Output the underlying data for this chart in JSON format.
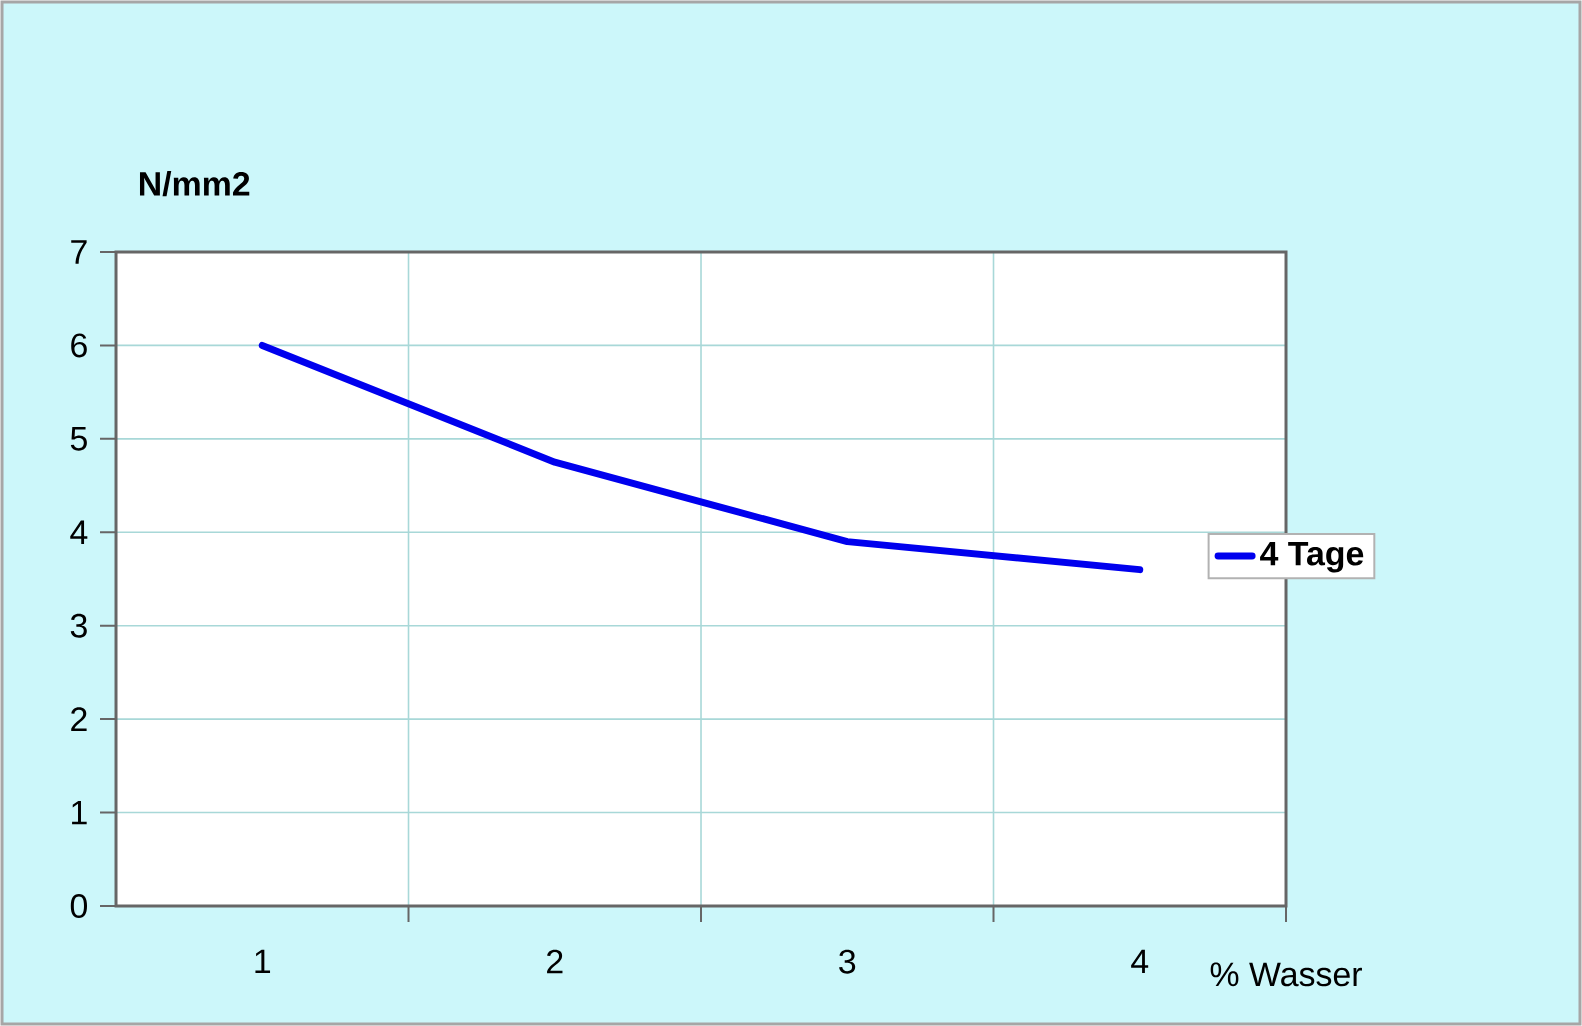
{
  "chart_data": {
    "type": "line",
    "ylabel": "N/mm2",
    "xlabel": "% Wasser",
    "categories": [
      "1",
      "2",
      "3",
      "4"
    ],
    "series": [
      {
        "name": "4 Tage",
        "color": "#0000ee",
        "values": [
          6.0,
          4.75,
          3.9,
          3.6
        ]
      }
    ],
    "ylim": [
      0,
      7
    ],
    "yticks": [
      0,
      1,
      2,
      3,
      4,
      5,
      6,
      7
    ],
    "grid": true,
    "legend": "right",
    "marker": "none",
    "line_style": "solid"
  }
}
